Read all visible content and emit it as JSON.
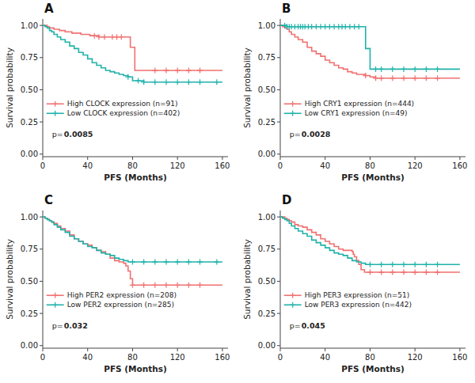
{
  "chart_data": [
    {
      "type": "step",
      "title": "A",
      "annotations": [
        "p=",
        "0.0085"
      ],
      "xlabel": "PFS (Months)",
      "ylabel": "Survival probability",
      "xlim": [
        0,
        165
      ],
      "ylim": [
        -0.02,
        1.05
      ],
      "xticks": [
        0,
        40,
        80,
        120,
        160
      ],
      "yticks": [
        {
          "value": 0.0,
          "label": "0.00"
        },
        {
          "value": 0.25,
          "label": "0.25"
        },
        {
          "value": 0.5,
          "label": "0.50"
        },
        {
          "value": 0.75,
          "label": "0.75"
        },
        {
          "value": 1.0,
          "label": "1.00"
        }
      ],
      "grid": false,
      "legend": "lower left",
      "series": [
        {
          "name": "High CLOCK expression (n=91)",
          "color": "#F07070",
          "marker": "+",
          "x": [
            0,
            2,
            4,
            6,
            8,
            10,
            12,
            15,
            18,
            20,
            23,
            26,
            30,
            34,
            38,
            42,
            46,
            50,
            52,
            55,
            58,
            62,
            66,
            70,
            72,
            75,
            78,
            80,
            82,
            90,
            95,
            100,
            110,
            120,
            130,
            140,
            160
          ],
          "values": [
            1.0,
            1.0,
            0.99,
            0.98,
            0.98,
            0.97,
            0.97,
            0.96,
            0.96,
            0.95,
            0.95,
            0.94,
            0.94,
            0.93,
            0.93,
            0.92,
            0.92,
            0.91,
            0.91,
            0.91,
            0.91,
            0.91,
            0.91,
            0.91,
            0.91,
            0.91,
            0.83,
            0.83,
            0.65,
            0.65,
            0.65,
            0.65,
            0.65,
            0.65,
            0.65,
            0.65,
            0.65
          ],
          "censor_x": [
            46,
            50,
            55,
            62,
            66,
            70,
            100,
            110,
            120,
            130,
            140
          ],
          "censor_values": [
            0.92,
            0.91,
            0.91,
            0.91,
            0.91,
            0.91,
            0.65,
            0.65,
            0.65,
            0.65,
            0.65
          ]
        },
        {
          "name": "Low CLOCK expression (n=402)",
          "color": "#20B2AA",
          "marker": "+",
          "x": [
            0,
            2,
            4,
            6,
            8,
            10,
            13,
            16,
            20,
            24,
            28,
            32,
            36,
            40,
            44,
            48,
            52,
            56,
            60,
            64,
            68,
            72,
            76,
            80,
            85,
            90,
            95,
            100,
            110,
            120,
            130,
            140,
            160
          ],
          "values": [
            1.0,
            0.99,
            0.98,
            0.96,
            0.95,
            0.93,
            0.91,
            0.89,
            0.87,
            0.84,
            0.82,
            0.79,
            0.77,
            0.74,
            0.71,
            0.69,
            0.67,
            0.65,
            0.64,
            0.63,
            0.62,
            0.61,
            0.6,
            0.57,
            0.57,
            0.56,
            0.56,
            0.56,
            0.56,
            0.56,
            0.56,
            0.56,
            0.56
          ],
          "censor_x": [
            76,
            85,
            90,
            100,
            110,
            120,
            130,
            140,
            155
          ],
          "censor_values": [
            0.6,
            0.57,
            0.56,
            0.56,
            0.56,
            0.56,
            0.56,
            0.56,
            0.56
          ]
        }
      ]
    },
    {
      "type": "step",
      "title": "B",
      "annotations": [
        "p=",
        "0.0028"
      ],
      "xlabel": "PFS (Months)",
      "ylabel": "Survival probability",
      "xlim": [
        0,
        165
      ],
      "ylim": [
        -0.02,
        1.05
      ],
      "xticks": [
        0,
        40,
        80,
        120,
        160
      ],
      "yticks": [
        {
          "value": 0.0,
          "label": "0.00"
        },
        {
          "value": 0.25,
          "label": "0.25"
        },
        {
          "value": 0.5,
          "label": "0.50"
        },
        {
          "value": 0.75,
          "label": "0.75"
        },
        {
          "value": 1.0,
          "label": "1.00"
        }
      ],
      "grid": false,
      "legend": "lower left",
      "series": [
        {
          "name": "High CRY1 expression (n=444)",
          "color": "#F07070",
          "marker": "+",
          "x": [
            0,
            2,
            4,
            6,
            8,
            10,
            13,
            16,
            20,
            24,
            28,
            32,
            36,
            40,
            44,
            48,
            52,
            56,
            60,
            64,
            68,
            72,
            76,
            80,
            85,
            90,
            95,
            100,
            110,
            120,
            130,
            140,
            160
          ],
          "values": [
            1.0,
            0.99,
            0.98,
            0.97,
            0.95,
            0.93,
            0.91,
            0.89,
            0.87,
            0.83,
            0.8,
            0.78,
            0.76,
            0.73,
            0.71,
            0.69,
            0.67,
            0.66,
            0.64,
            0.63,
            0.62,
            0.62,
            0.61,
            0.6,
            0.59,
            0.59,
            0.59,
            0.59,
            0.59,
            0.59,
            0.59,
            0.59,
            0.59
          ],
          "censor_x": [
            76,
            85,
            90,
            100,
            110,
            120,
            130,
            140
          ],
          "censor_values": [
            0.61,
            0.59,
            0.59,
            0.59,
            0.59,
            0.59,
            0.59,
            0.59
          ]
        },
        {
          "name": "Low CRY1 expression (n=49)",
          "color": "#20B2AA",
          "marker": "+",
          "x": [
            0,
            2,
            4,
            6,
            8,
            10,
            13,
            16,
            18,
            20,
            22,
            25,
            28,
            32,
            36,
            40,
            44,
            48,
            52,
            55,
            58,
            62,
            66,
            70,
            74,
            76,
            78,
            80,
            85,
            90,
            100,
            110,
            120,
            130,
            140,
            160
          ],
          "values": [
            1.0,
            1.0,
            1.0,
            0.99,
            0.99,
            0.99,
            0.99,
            0.99,
            0.99,
            0.99,
            0.99,
            0.99,
            0.99,
            0.99,
            0.99,
            0.99,
            0.99,
            0.99,
            0.99,
            0.99,
            0.99,
            0.99,
            0.99,
            0.99,
            0.99,
            0.82,
            0.82,
            0.66,
            0.66,
            0.66,
            0.66,
            0.66,
            0.66,
            0.66,
            0.66,
            0.66
          ],
          "censor_x": [
            4,
            6,
            8,
            10,
            13,
            16,
            18,
            20,
            22,
            25,
            28,
            32,
            36,
            40,
            44,
            48,
            52,
            55,
            58,
            62,
            66,
            70,
            85,
            90,
            100,
            110,
            120,
            130,
            140
          ],
          "censor_values": [
            1.0,
            0.99,
            0.99,
            0.99,
            0.99,
            0.99,
            0.99,
            0.99,
            0.99,
            0.99,
            0.99,
            0.99,
            0.99,
            0.99,
            0.99,
            0.99,
            0.99,
            0.99,
            0.99,
            0.99,
            0.99,
            0.99,
            0.66,
            0.66,
            0.66,
            0.66,
            0.66,
            0.66,
            0.66
          ]
        }
      ]
    },
    {
      "type": "step",
      "title": "C",
      "annotations": [
        "p=",
        "0.032"
      ],
      "xlabel": "PFS (Months)",
      "ylabel": "Survival probability",
      "xlim": [
        0,
        165
      ],
      "ylim": [
        -0.02,
        1.05
      ],
      "xticks": [
        0,
        40,
        80,
        120,
        160
      ],
      "yticks": [
        {
          "value": 0.0,
          "label": "0.00"
        },
        {
          "value": 0.25,
          "label": "0.25"
        },
        {
          "value": 0.5,
          "label": "0.50"
        },
        {
          "value": 0.75,
          "label": "0.75"
        },
        {
          "value": 1.0,
          "label": "1.00"
        }
      ],
      "grid": false,
      "legend": "lower left",
      "series": [
        {
          "name": "High PER2 expression (n=208)",
          "color": "#F07070",
          "marker": "+",
          "x": [
            0,
            2,
            4,
            6,
            8,
            10,
            13,
            16,
            20,
            24,
            28,
            32,
            36,
            40,
            44,
            48,
            52,
            56,
            60,
            64,
            68,
            72,
            74,
            76,
            78,
            80,
            85,
            90,
            100,
            110,
            120,
            130,
            140,
            160
          ],
          "values": [
            1.0,
            0.99,
            0.98,
            0.97,
            0.96,
            0.95,
            0.93,
            0.91,
            0.89,
            0.86,
            0.83,
            0.81,
            0.79,
            0.78,
            0.76,
            0.74,
            0.73,
            0.71,
            0.68,
            0.66,
            0.65,
            0.64,
            0.62,
            0.58,
            0.52,
            0.47,
            0.47,
            0.47,
            0.47,
            0.47,
            0.47,
            0.47,
            0.47,
            0.47
          ],
          "censor_x": [
            80,
            90,
            100,
            110,
            120,
            130,
            140
          ],
          "censor_values": [
            0.47,
            0.47,
            0.47,
            0.47,
            0.47,
            0.47,
            0.47
          ]
        },
        {
          "name": "Low PER2 expression (n=285)",
          "color": "#20B2AA",
          "marker": "+",
          "x": [
            0,
            2,
            4,
            6,
            8,
            10,
            13,
            16,
            20,
            24,
            28,
            32,
            36,
            40,
            44,
            48,
            52,
            56,
            60,
            64,
            68,
            72,
            76,
            80,
            85,
            90,
            100,
            110,
            120,
            130,
            140,
            160
          ],
          "values": [
            1.0,
            0.99,
            0.98,
            0.97,
            0.96,
            0.94,
            0.92,
            0.9,
            0.88,
            0.85,
            0.83,
            0.81,
            0.79,
            0.77,
            0.76,
            0.74,
            0.72,
            0.71,
            0.7,
            0.68,
            0.67,
            0.66,
            0.65,
            0.65,
            0.65,
            0.65,
            0.65,
            0.65,
            0.65,
            0.65,
            0.65,
            0.65
          ],
          "censor_x": [
            80,
            90,
            100,
            110,
            120,
            130,
            140,
            155
          ],
          "censor_values": [
            0.65,
            0.65,
            0.65,
            0.65,
            0.65,
            0.65,
            0.65,
            0.65
          ]
        }
      ]
    },
    {
      "type": "step",
      "title": "D",
      "annotations": [
        "p=",
        "0.045"
      ],
      "xlabel": "PFS (Months)",
      "ylabel": "Survival probability",
      "xlim": [
        0,
        165
      ],
      "ylim": [
        -0.02,
        1.05
      ],
      "xticks": [
        0,
        40,
        80,
        120,
        160
      ],
      "yticks": [
        {
          "value": 0.0,
          "label": "0.00"
        },
        {
          "value": 0.25,
          "label": "0.25"
        },
        {
          "value": 0.5,
          "label": "0.50"
        },
        {
          "value": 0.75,
          "label": "0.75"
        },
        {
          "value": 1.0,
          "label": "1.00"
        }
      ],
      "grid": false,
      "legend": "lower left",
      "series": [
        {
          "name": "High PER3 expression (n=51)",
          "color": "#F07070",
          "marker": "+",
          "x": [
            0,
            2,
            4,
            6,
            8,
            10,
            13,
            16,
            20,
            24,
            28,
            32,
            36,
            40,
            44,
            48,
            52,
            56,
            60,
            64,
            65,
            66,
            68,
            70,
            72,
            75,
            80,
            90,
            100,
            110,
            120,
            130,
            140,
            160
          ],
          "values": [
            1.0,
            1.0,
            0.99,
            0.98,
            0.97,
            0.96,
            0.94,
            0.93,
            0.92,
            0.9,
            0.88,
            0.86,
            0.83,
            0.81,
            0.79,
            0.77,
            0.75,
            0.74,
            0.74,
            0.73,
            0.71,
            0.69,
            0.66,
            0.63,
            0.59,
            0.57,
            0.57,
            0.57,
            0.57,
            0.57,
            0.57,
            0.57,
            0.57,
            0.57
          ],
          "censor_x": [
            80,
            90,
            100,
            110,
            120,
            130,
            140
          ],
          "censor_values": [
            0.57,
            0.57,
            0.57,
            0.57,
            0.57,
            0.57,
            0.57
          ]
        },
        {
          "name": "Low PER3 expression (n=442)",
          "color": "#20B2AA",
          "marker": "+",
          "x": [
            0,
            2,
            4,
            6,
            8,
            10,
            13,
            16,
            20,
            24,
            28,
            32,
            36,
            40,
            44,
            48,
            52,
            56,
            60,
            64,
            68,
            72,
            76,
            80,
            85,
            90,
            100,
            110,
            120,
            130,
            140,
            160
          ],
          "values": [
            1.0,
            0.99,
            0.98,
            0.97,
            0.95,
            0.93,
            0.91,
            0.89,
            0.87,
            0.85,
            0.82,
            0.8,
            0.78,
            0.76,
            0.74,
            0.72,
            0.71,
            0.7,
            0.68,
            0.66,
            0.65,
            0.64,
            0.63,
            0.63,
            0.63,
            0.63,
            0.63,
            0.63,
            0.63,
            0.63,
            0.63,
            0.63
          ],
          "censor_x": [
            80,
            90,
            100,
            110,
            120,
            130,
            140
          ],
          "censor_values": [
            0.63,
            0.63,
            0.63,
            0.63,
            0.63,
            0.63,
            0.63
          ]
        }
      ]
    }
  ]
}
